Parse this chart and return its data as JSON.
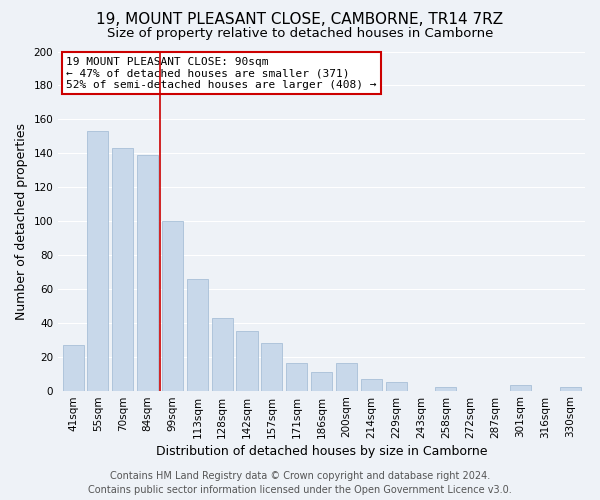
{
  "title": "19, MOUNT PLEASANT CLOSE, CAMBORNE, TR14 7RZ",
  "subtitle": "Size of property relative to detached houses in Camborne",
  "xlabel": "Distribution of detached houses by size in Camborne",
  "ylabel": "Number of detached properties",
  "categories": [
    "41sqm",
    "55sqm",
    "70sqm",
    "84sqm",
    "99sqm",
    "113sqm",
    "128sqm",
    "142sqm",
    "157sqm",
    "171sqm",
    "186sqm",
    "200sqm",
    "214sqm",
    "229sqm",
    "243sqm",
    "258sqm",
    "272sqm",
    "287sqm",
    "301sqm",
    "316sqm",
    "330sqm"
  ],
  "values": [
    27,
    153,
    143,
    139,
    100,
    66,
    43,
    35,
    28,
    16,
    11,
    16,
    7,
    5,
    0,
    2,
    0,
    0,
    3,
    0,
    2
  ],
  "bar_color": "#c8d8ea",
  "bar_edge_color": "#a8c0d8",
  "vline_x": 3.5,
  "vline_color": "#cc0000",
  "annotation_title": "19 MOUNT PLEASANT CLOSE: 90sqm",
  "annotation_line1": "← 47% of detached houses are smaller (371)",
  "annotation_line2": "52% of semi-detached houses are larger (408) →",
  "annotation_box_color": "#ffffff",
  "annotation_box_edge": "#cc0000",
  "ylim": [
    0,
    200
  ],
  "yticks": [
    0,
    20,
    40,
    60,
    80,
    100,
    120,
    140,
    160,
    180,
    200
  ],
  "footer_line1": "Contains HM Land Registry data © Crown copyright and database right 2024.",
  "footer_line2": "Contains public sector information licensed under the Open Government Licence v3.0.",
  "background_color": "#eef2f7",
  "grid_color": "#ffffff",
  "title_fontsize": 11,
  "subtitle_fontsize": 9.5,
  "axis_label_fontsize": 9,
  "tick_fontsize": 7.5,
  "footer_fontsize": 7,
  "annotation_fontsize": 8
}
